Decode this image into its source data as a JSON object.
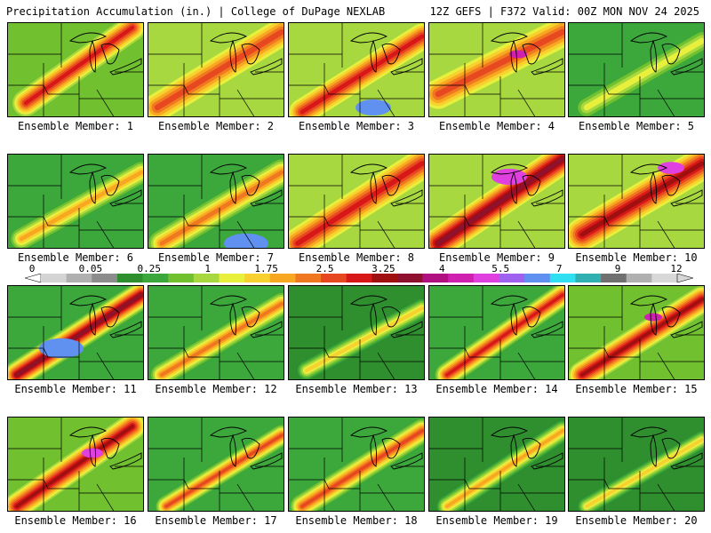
{
  "header": {
    "left": "Precipitation Accumulation (in.) | College of DuPage NEXLAB",
    "right": "12Z GEFS | F372 Valid: 00Z MON NOV 24 2025"
  },
  "colorbar": {
    "ticks": [
      "0",
      "0.05",
      "0.25",
      "1",
      "1.75",
      "2.5",
      "3.25",
      "4",
      "5.5",
      "7",
      "9",
      "12"
    ],
    "colors": [
      "#d4d4d4",
      "#b0b0b0",
      "#8c8c8c",
      "#2f8f2f",
      "#3ca83c",
      "#70c030",
      "#a8d840",
      "#e8f03c",
      "#f8d030",
      "#f8a820",
      "#f07820",
      "#e84820",
      "#d81818",
      "#a01010",
      "#901030",
      "#b01080",
      "#d020b0",
      "#e040e0",
      "#a060f0",
      "#6090f0",
      "#30e0f0",
      "#30b0b0",
      "#707070",
      "#b0b0b0",
      "#d8d8d8"
    ]
  },
  "panels": [
    {
      "label": "Ensemble Member: 1"
    },
    {
      "label": "Ensemble Member: 2"
    },
    {
      "label": "Ensemble Member: 3"
    },
    {
      "label": "Ensemble Member: 4"
    },
    {
      "label": "Ensemble Member: 5"
    },
    {
      "label": "Ensemble Member: 6"
    },
    {
      "label": "Ensemble Member: 7"
    },
    {
      "label": "Ensemble Member: 8"
    },
    {
      "label": "Ensemble Member: 9"
    },
    {
      "label": "Ensemble Member: 10"
    },
    {
      "label": "Ensemble Member: 11"
    },
    {
      "label": "Ensemble Member: 12"
    },
    {
      "label": "Ensemble Member: 13"
    },
    {
      "label": "Ensemble Member: 14"
    },
    {
      "label": "Ensemble Member: 15"
    },
    {
      "label": "Ensemble Member: 16"
    },
    {
      "label": "Ensemble Member: 17"
    },
    {
      "label": "Ensemble Member: 18"
    },
    {
      "label": "Ensemble Member: 19"
    },
    {
      "label": "Ensemble Member: 20"
    }
  ]
}
